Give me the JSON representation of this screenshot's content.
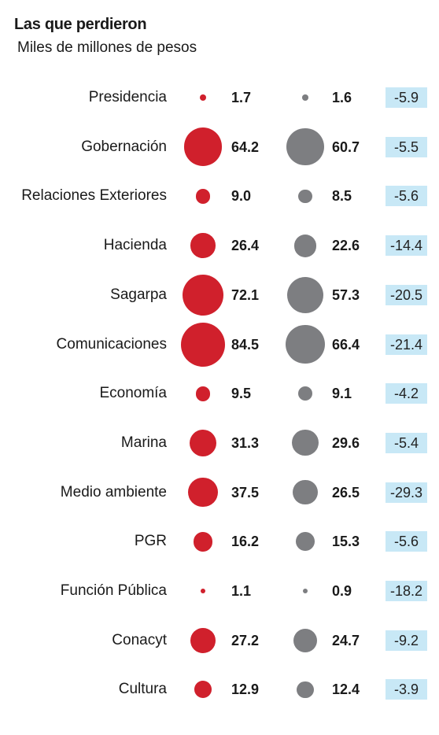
{
  "chart_data": {
    "type": "table",
    "title": "Las que perdieron",
    "subtitle": "Miles de millones de pesos",
    "colors": {
      "series1": "#d0202c",
      "series2": "#7d7e81",
      "change_bg": "#c8e8f6"
    },
    "rows": [
      {
        "label": "Presidencia",
        "v1": 1.7,
        "v2": 1.6,
        "v1_text": "1.7",
        "v2_text": "1.6",
        "change": "-5.9"
      },
      {
        "label": "Gobernación",
        "v1": 64.2,
        "v2": 60.7,
        "v1_text": "64.2",
        "v2_text": "60.7",
        "change": "-5.5"
      },
      {
        "label": "Relaciones Exteriores",
        "v1": 9.0,
        "v2": 8.5,
        "v1_text": "9.0",
        "v2_text": "8.5",
        "change": "-5.6"
      },
      {
        "label": "Hacienda",
        "v1": 26.4,
        "v2": 22.6,
        "v1_text": "26.4",
        "v2_text": "22.6",
        "change": "-14.4"
      },
      {
        "label": "Sagarpa",
        "v1": 72.1,
        "v2": 57.3,
        "v1_text": "72.1",
        "v2_text": "57.3",
        "change": "-20.5"
      },
      {
        "label": "Comunicaciones",
        "v1": 84.5,
        "v2": 66.4,
        "v1_text": "84.5",
        "v2_text": "66.4",
        "change": "-21.4"
      },
      {
        "label": "Economía",
        "v1": 9.5,
        "v2": 9.1,
        "v1_text": "9.5",
        "v2_text": "9.1",
        "change": "-4.2"
      },
      {
        "label": "Marina",
        "v1": 31.3,
        "v2": 29.6,
        "v1_text": "31.3",
        "v2_text": "29.6",
        "change": "-5.4"
      },
      {
        "label": "Medio ambiente",
        "v1": 37.5,
        "v2": 26.5,
        "v1_text": "37.5",
        "v2_text": "26.5",
        "change": "-29.3"
      },
      {
        "label": "PGR",
        "v1": 16.2,
        "v2": 15.3,
        "v1_text": "16.2",
        "v2_text": "15.3",
        "change": "-5.6"
      },
      {
        "label": "Función Pública",
        "v1": 1.1,
        "v2": 0.9,
        "v1_text": "1.1",
        "v2_text": "0.9",
        "change": "-18.2"
      },
      {
        "label": "Conacyt",
        "v1": 27.2,
        "v2": 24.7,
        "v1_text": "27.2",
        "v2_text": "24.7",
        "change": "-9.2"
      },
      {
        "label": "Cultura",
        "v1": 12.9,
        "v2": 12.4,
        "v1_text": "12.9",
        "v2_text": "12.4",
        "change": "-3.9"
      }
    ]
  }
}
